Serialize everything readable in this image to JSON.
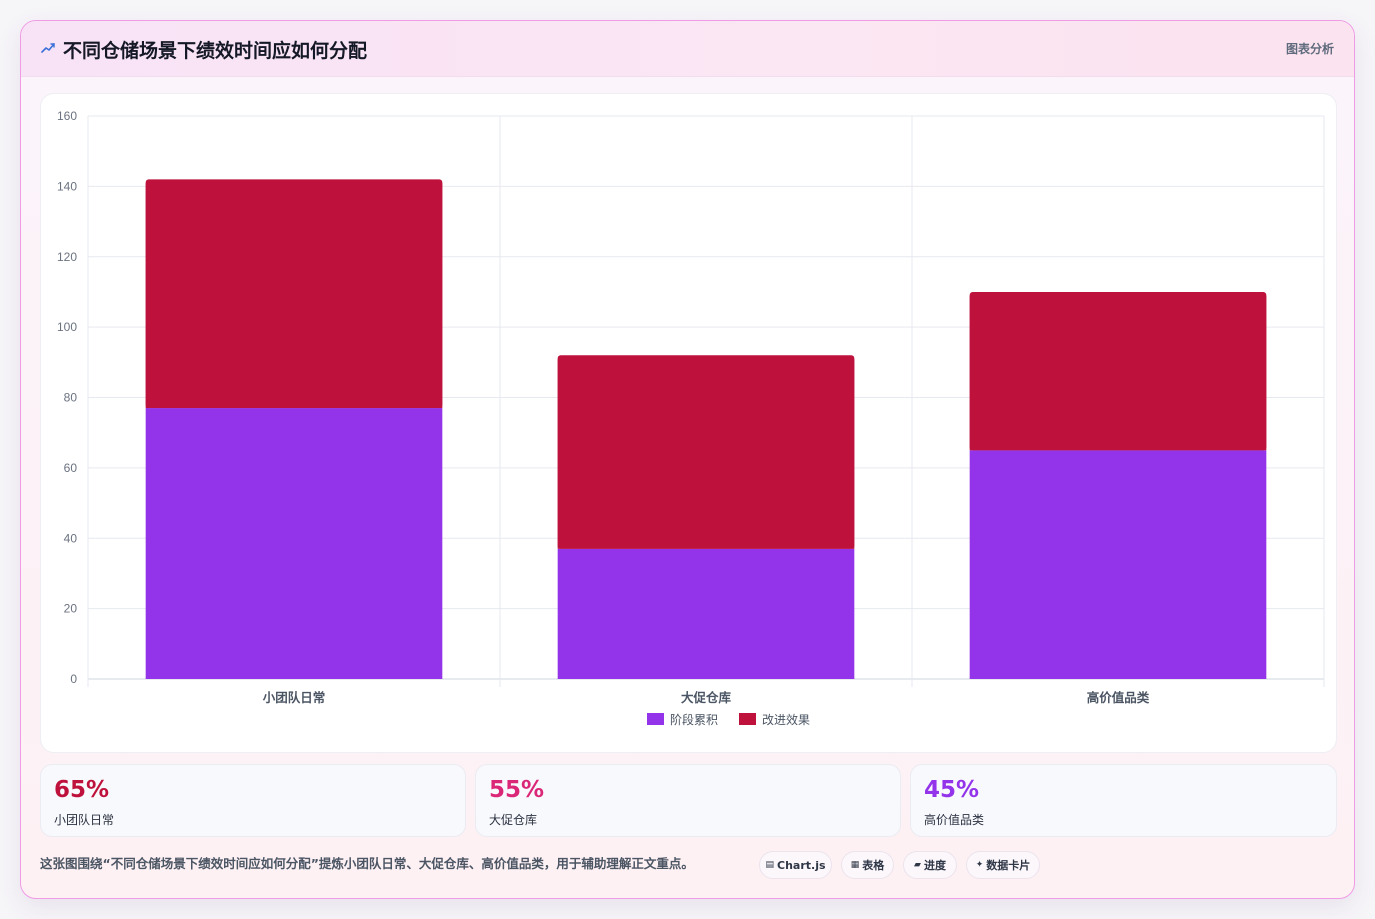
{
  "header": {
    "title": "不同仓储场景下绩效时间应如何分配",
    "tag": "图表分析",
    "icon": "trend-icon"
  },
  "chart_data": {
    "type": "bar",
    "stacked": true,
    "categories": [
      "小团队日常",
      "大促仓库",
      "高价值品类"
    ],
    "series": [
      {
        "name": "阶段累积",
        "color": "#9333ea",
        "values": [
          77,
          37,
          65
        ]
      },
      {
        "name": "改进效果",
        "color": "#be123c",
        "values": [
          65,
          55,
          45
        ]
      }
    ],
    "ylim": [
      0,
      160
    ],
    "yticks": [
      0,
      20,
      40,
      60,
      80,
      100,
      120,
      140,
      160
    ],
    "grid": true,
    "legend": "bottom"
  },
  "stats": [
    {
      "value": "65%",
      "label": "小团队日常",
      "color": "#be123c"
    },
    {
      "value": "55%",
      "label": "大促仓库",
      "color": "#db2777"
    },
    {
      "value": "45%",
      "label": "高价值品类",
      "color": "#9333ea"
    }
  ],
  "footer": {
    "note": "这张图围绕“不同仓储场景下绩效时间应如何分配”提炼小团队日常、大促仓库、高价值品类，用于辅助理解正文重点。",
    "chips": [
      {
        "icon": "chart-icon",
        "label": "Chart.js"
      },
      {
        "icon": "table-icon",
        "label": "表格"
      },
      {
        "icon": "progress-icon",
        "label": "进度"
      },
      {
        "icon": "sparkle-icon",
        "label": "数据卡片"
      }
    ]
  }
}
